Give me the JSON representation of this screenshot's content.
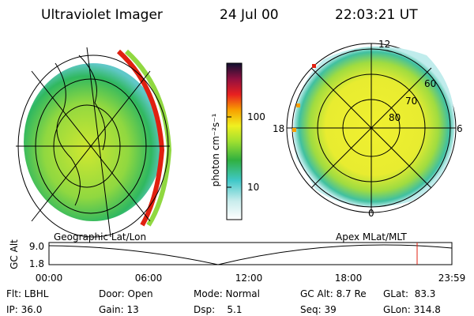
{
  "header": {
    "title": "Ultraviolet Imager",
    "date": "24 Jul 00",
    "time": "22:03:21 UT"
  },
  "left_panel": {
    "label": "Geographic Lat/Lon"
  },
  "right_panel": {
    "label": "Apex MLat/MLT",
    "mlt_labels": [
      "12",
      "18",
      "6",
      "0"
    ],
    "mlat_labels": [
      "60",
      "70",
      "80"
    ]
  },
  "colorbar": {
    "label": "photon cm⁻²s⁻¹",
    "ticks": [
      "100",
      "10"
    ]
  },
  "orbit_plot": {
    "ylabel": "GC Alt",
    "yticks": [
      "9.0",
      "1.8"
    ],
    "xticks": [
      "00:00",
      "06:00",
      "12:00",
      "18:00",
      "23:59"
    ]
  },
  "footer": {
    "rows": [
      [
        "Flt: LBHL",
        "Door: Open",
        "Mode: Normal",
        "GC Alt: 8.7 Re",
        "GLat:  83.3"
      ],
      [
        "IP: 36.0",
        "Gain: 13",
        "Dsp:    5.1",
        "Seq: 39",
        "GLon: 314.8"
      ]
    ]
  }
}
